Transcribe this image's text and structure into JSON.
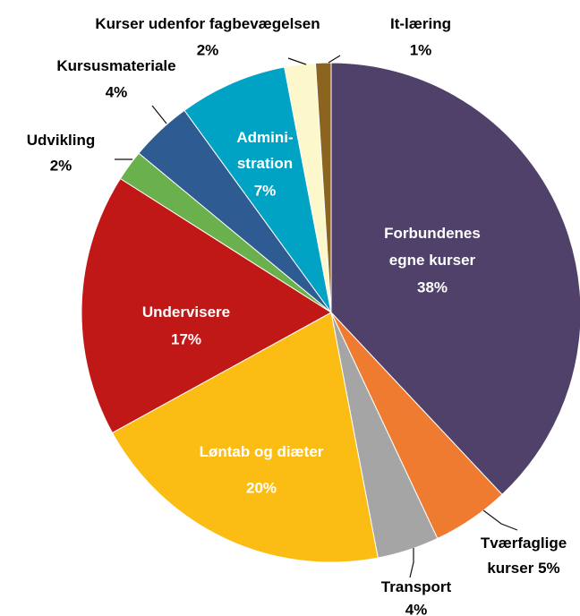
{
  "chart_data": {
    "type": "pie",
    "categories": [
      [
        "Forbundenes",
        "egne kurser"
      ],
      [
        "Tværfaglige",
        "kurser"
      ],
      [
        "Transport"
      ],
      [
        "Løntab og diæter"
      ],
      [
        "Undervisere"
      ],
      [
        "Udvikling"
      ],
      [
        "Kursusmateriale"
      ],
      [
        "Admini-",
        "stration"
      ],
      [
        "Kurser udenfor fagbevægelsen"
      ],
      [
        "It-læring"
      ]
    ],
    "values": [
      38,
      5,
      4,
      20,
      17,
      2,
      4,
      7,
      2,
      1
    ],
    "value_labels": [
      "38%",
      "5%",
      "4%",
      "20%",
      "17%",
      "2%",
      "4%",
      "7%",
      "2%",
      "1%"
    ],
    "colors": [
      "#4f4169",
      "#ee7b30",
      "#a5a5a5",
      "#fbbd14",
      "#c01717",
      "#6ab04c",
      "#2e5c92",
      "#00a3c4",
      "#fdf8cc",
      "#8b6420"
    ]
  }
}
